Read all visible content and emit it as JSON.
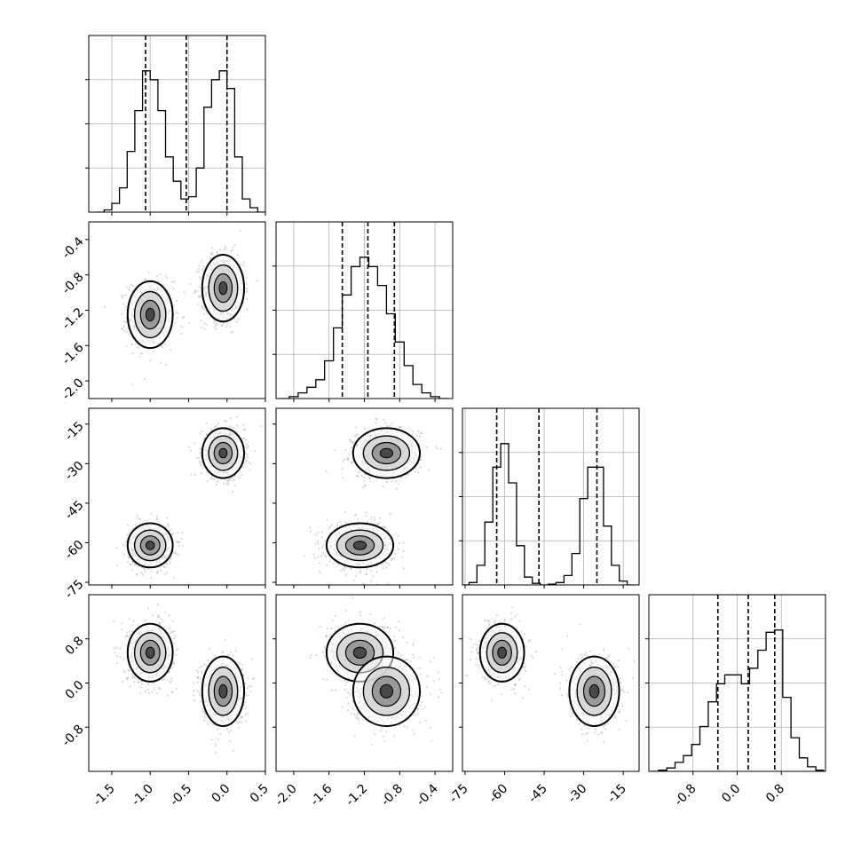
{
  "chart_data": {
    "type": "corner",
    "grid": true,
    "params": [
      {
        "ticks": [
          "-1.5",
          "-1.0",
          "-0.5",
          "0.0",
          "0.5"
        ],
        "range": [
          -1.8,
          0.5
        ],
        "quantiles": [
          -1.06,
          -0.53,
          0.0
        ]
      },
      {
        "ticks": [
          "-2.0",
          "-1.6",
          "-1.2",
          "-0.8",
          "-0.4"
        ],
        "range": [
          -2.2,
          -0.2
        ],
        "quantiles": [
          -1.45,
          -1.16,
          -0.86
        ]
      },
      {
        "ticks": [
          "-75",
          "-60",
          "-45",
          "-30",
          "-15"
        ],
        "range": [
          -76,
          -9
        ],
        "quantiles": [
          -63,
          -47,
          -25
        ]
      },
      {
        "ticks": [
          "-0.8",
          "0.0",
          "0.8"
        ],
        "range": [
          -1.6,
          1.6
        ],
        "quantiles": [
          -0.35,
          0.2,
          0.68
        ]
      }
    ],
    "histograms": [
      {
        "x": [
          -1.65,
          -1.55,
          -1.45,
          -1.35,
          -1.25,
          -1.15,
          -1.05,
          -0.95,
          -0.85,
          -0.75,
          -0.65,
          -0.55,
          -0.45,
          -0.35,
          -0.25,
          -0.15,
          -0.05,
          0.05,
          0.15,
          0.25,
          0.35,
          0.45
        ],
        "values": [
          0,
          2,
          8,
          22,
          55,
          92,
          128,
          120,
          92,
          50,
          28,
          12,
          14,
          40,
          95,
          120,
          128,
          112,
          50,
          12,
          4,
          0
        ]
      },
      {
        "x": [
          -2.1,
          -2.0,
          -1.9,
          -1.8,
          -1.7,
          -1.6,
          -1.5,
          -1.4,
          -1.3,
          -1.2,
          -1.1,
          -1.0,
          -0.9,
          -0.8,
          -0.7,
          -0.6,
          -0.5,
          -0.4,
          -0.3
        ],
        "values": [
          0,
          2,
          6,
          12,
          20,
          40,
          75,
          110,
          140,
          150,
          140,
          120,
          90,
          60,
          35,
          15,
          6,
          2,
          0
        ]
      },
      {
        "x": [
          -75,
          -72,
          -69,
          -66,
          -63,
          -60,
          -57,
          -54,
          -51,
          -48,
          -45,
          -42,
          -39,
          -36,
          -33,
          -30,
          -27,
          -24,
          -21,
          -18,
          -15,
          -12
        ],
        "values": [
          0,
          3,
          25,
          80,
          150,
          180,
          130,
          50,
          10,
          2,
          0,
          1,
          3,
          12,
          40,
          110,
          150,
          150,
          75,
          25,
          5,
          0
        ]
      },
      {
        "x": [
          -1.5,
          -1.35,
          -1.2,
          -1.05,
          -0.9,
          -0.75,
          -0.6,
          -0.45,
          -0.3,
          -0.15,
          0.0,
          0.15,
          0.3,
          0.45,
          0.6,
          0.75,
          0.9,
          1.05,
          1.2,
          1.35,
          1.5
        ],
        "values": [
          0,
          1,
          3,
          8,
          14,
          24,
          40,
          62,
          78,
          86,
          86,
          78,
          92,
          108,
          124,
          126,
          66,
          30,
          12,
          4,
          1
        ]
      }
    ],
    "clusters": [
      {
        "mode": [
          -1.0,
          -1.25,
          -61,
          0.55
        ],
        "sd": [
          0.14,
          0.18,
          4,
          0.25
        ],
        "weight": 0.5
      },
      {
        "mode": [
          -0.05,
          -0.95,
          -26,
          -0.15
        ],
        "sd": [
          0.13,
          0.18,
          4.5,
          0.3
        ],
        "weight": 0.5
      }
    ]
  }
}
